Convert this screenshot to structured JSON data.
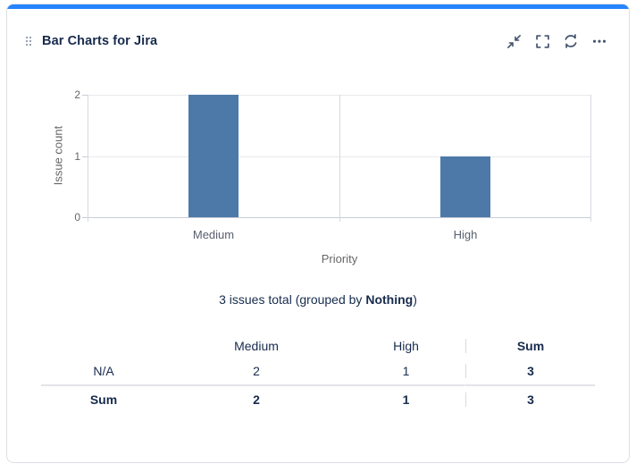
{
  "header": {
    "title": "Bar Charts for Jira",
    "icons": [
      "collapse-icon",
      "fullscreen-icon",
      "refresh-icon",
      "more-icon"
    ]
  },
  "chart_data": {
    "type": "bar",
    "categories": [
      "Medium",
      "High"
    ],
    "values": [
      2,
      1
    ],
    "title": "",
    "xlabel": "Priority",
    "ylabel": "Issue count",
    "ylim": [
      0,
      2
    ],
    "yticks": [
      0,
      1,
      2
    ],
    "grid": true,
    "legend": "none",
    "bar_color": "#4d79a9"
  },
  "summary": {
    "prefix": "3 issues total (grouped by ",
    "group": "Nothing",
    "suffix": ")"
  },
  "table": {
    "headers": [
      "",
      "Medium",
      "High",
      "Sum"
    ],
    "rows": [
      {
        "cells": [
          "N/A",
          "2",
          "1",
          "3"
        ]
      },
      {
        "cells": [
          "Sum",
          "2",
          "1",
          "3"
        ]
      }
    ]
  },
  "colors": {
    "accent_top": "#2684ff",
    "bar": "#4d79a9",
    "text_primary": "#172b4d",
    "chart_text": "#666666",
    "icon": "#44546f"
  }
}
